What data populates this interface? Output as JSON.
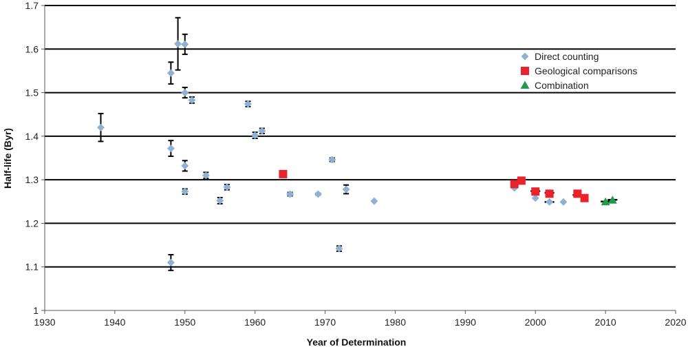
{
  "chart_data": {
    "type": "scatter",
    "title": "",
    "xlabel": "Year of Determination",
    "ylabel": "Half-life (Byr)",
    "xlim": [
      1930,
      2020
    ],
    "ylim": [
      1.0,
      1.7
    ],
    "x_ticks": [
      1930,
      1940,
      1950,
      1960,
      1970,
      1980,
      1990,
      2000,
      2010,
      2020
    ],
    "x_tick_labels": [
      "1930",
      "1940",
      "1950",
      "1960",
      "1970",
      "1980",
      "1990",
      "2000",
      "2010",
      "2020"
    ],
    "y_ticks": [
      1.0,
      1.1,
      1.2,
      1.3,
      1.4,
      1.5,
      1.6,
      1.7
    ],
    "y_tick_labels": [
      "1",
      "1.1",
      "1.2",
      "1.3",
      "1.4",
      "1.5",
      "1.6",
      "1.7"
    ],
    "grid": "horizontal",
    "legend_position": "top-right",
    "series": [
      {
        "name": "Direct counting",
        "marker": "diamond",
        "color": "#8fb1d3",
        "points": [
          {
            "x": 1938,
            "y": 1.42,
            "err": 0.032
          },
          {
            "x": 1948,
            "y": 1.545,
            "err": 0.025
          },
          {
            "x": 1948,
            "y": 1.372,
            "err": 0.018
          },
          {
            "x": 1948,
            "y": 1.11,
            "err": 0.018
          },
          {
            "x": 1949,
            "y": 1.612,
            "err": 0.06
          },
          {
            "x": 1950,
            "y": 1.611,
            "err": 0.023
          },
          {
            "x": 1950,
            "y": 1.5,
            "err": 0.012
          },
          {
            "x": 1950,
            "y": 1.332,
            "err": 0.012
          },
          {
            "x": 1950,
            "y": 1.273,
            "err": 0.006
          },
          {
            "x": 1951,
            "y": 1.483,
            "err": 0.007
          },
          {
            "x": 1953,
            "y": 1.31,
            "err": 0.007
          },
          {
            "x": 1955,
            "y": 1.252,
            "err": 0.007
          },
          {
            "x": 1956,
            "y": 1.283,
            "err": 0.006
          },
          {
            "x": 1959,
            "y": 1.474,
            "err": 0.006
          },
          {
            "x": 1960,
            "y": 1.402,
            "err": 0.007
          },
          {
            "x": 1961,
            "y": 1.412,
            "err": 0.006
          },
          {
            "x": 1965,
            "y": 1.267,
            "err": 0.004
          },
          {
            "x": 1969,
            "y": 1.267,
            "err": 0.002
          },
          {
            "x": 1971,
            "y": 1.346,
            "err": 0.004
          },
          {
            "x": 1972,
            "y": 1.142,
            "err": 0.006
          },
          {
            "x": 1973,
            "y": 1.278,
            "err": 0.01
          },
          {
            "x": 1977,
            "y": 1.251,
            "err": 0
          },
          {
            "x": 1997,
            "y": 1.281,
            "err": 0
          },
          {
            "x": 2000,
            "y": 1.258,
            "err": 0
          },
          {
            "x": 2002,
            "y": 1.249,
            "err": 0
          },
          {
            "x": 2004,
            "y": 1.249,
            "err": 0
          }
        ]
      },
      {
        "name": "Geological comparisons",
        "marker": "square",
        "color": "#e8232b",
        "points": [
          {
            "x": 1964,
            "y": 1.313,
            "err": 0
          },
          {
            "x": 1997,
            "y": 1.29,
            "err": 0
          },
          {
            "x": 1998,
            "y": 1.298,
            "err": 0
          },
          {
            "x": 2000,
            "y": 1.273,
            "err": 0
          },
          {
            "x": 2002,
            "y": 1.268,
            "err": 0
          },
          {
            "x": 2006,
            "y": 1.268,
            "err": 0
          },
          {
            "x": 2007,
            "y": 1.258,
            "err": 0
          }
        ]
      },
      {
        "name": "Combination",
        "marker": "triangle",
        "color": "#1e9a4a",
        "points": [
          {
            "x": 2010,
            "y": 1.249,
            "err": 0
          },
          {
            "x": 2011,
            "y": 1.253,
            "err": 0
          }
        ]
      }
    ],
    "horizontal_bars": [
      {
        "x": 2000,
        "y": 1.274
      },
      {
        "x": 2002,
        "y": 1.27
      },
      {
        "x": 2002,
        "y": 1.249
      },
      {
        "x": 2006,
        "y": 1.265
      },
      {
        "x": 2010,
        "y": 1.25
      },
      {
        "x": 2011,
        "y": 1.254
      }
    ]
  }
}
